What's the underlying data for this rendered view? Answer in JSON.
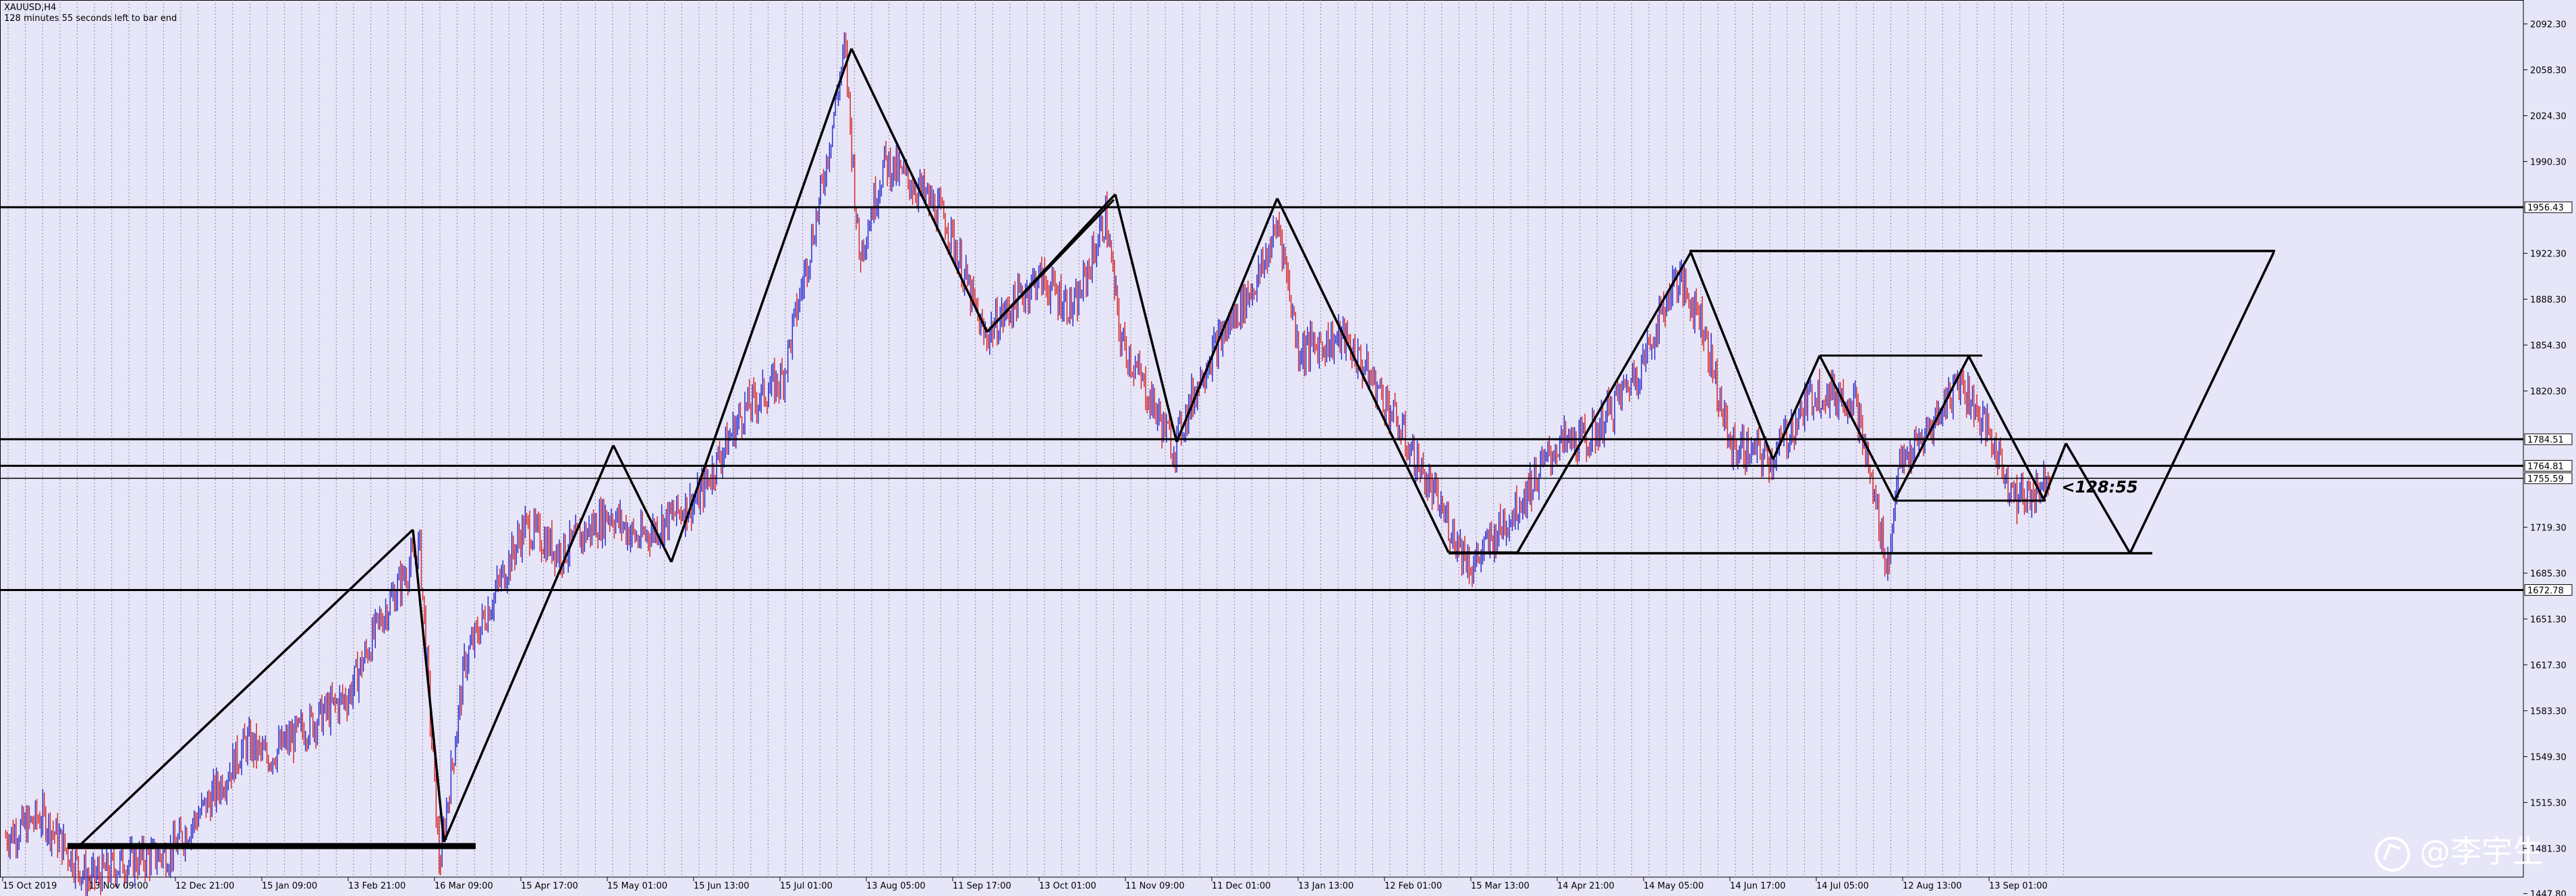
{
  "window": {
    "symbol_title": "XAUUSD,H4",
    "countdown_text": "128 minutes 55 seconds left to bar end",
    "watermark": "@李宇生"
  },
  "colors": {
    "background": "#e6e6f8",
    "grid": "#8a8aa0",
    "bull_candle": "#2020c8",
    "bear_candle": "#d81b1b",
    "drawing": "#000000",
    "price_label_bg": "#ffffff"
  },
  "chart_data": {
    "type": "line",
    "title": "",
    "xlabel": "",
    "ylabel": "",
    "grid": true,
    "price_scale_position": "right",
    "ylim": [
      1460,
      2110
    ],
    "x_tick_labels": [
      "15 Oct 2019",
      "13 Nov 09:00",
      "12 Dec 21:00",
      "15 Jan 09:00",
      "13 Feb 21:00",
      "16 Mar 09:00",
      "15 Apr 17:00",
      "15 May 01:00",
      "15 Jun 13:00",
      "15 Jul 01:00",
      "13 Aug 05:00",
      "11 Sep 17:00",
      "13 Oct 01:00",
      "11 Nov 09:00",
      "11 Dec 01:00",
      "13 Jan 13:00",
      "12 Feb 01:00",
      "15 Mar 13:00",
      "14 Apr 21:00",
      "14 May 05:00",
      "14 Jun 17:00",
      "14 Jul 05:00",
      "12 Aug 13:00",
      "13 Sep 01:00"
    ],
    "y_tick_labels": [
      "2092.30",
      "2058.30",
      "2024.30",
      "1990.30",
      "1922.30",
      "1888.30",
      "1854.30",
      "1820.30",
      "1719.30",
      "1685.30",
      "1651.30",
      "1617.30",
      "1583.30",
      "1549.30",
      "1515.30",
      "1481.30",
      "1447.80"
    ],
    "price_series": {
      "name": "",
      "x": [
        "2019-10-15",
        "2019-10-28",
        "2019-11-13",
        "2019-11-25",
        "2019-12-12",
        "2019-12-27",
        "2020-01-08",
        "2020-01-15",
        "2020-02-01",
        "2020-02-13",
        "2020-02-24",
        "2020-03-09",
        "2020-03-16",
        "2020-03-25",
        "2020-04-15",
        "2020-04-28",
        "2020-05-15",
        "2020-05-25",
        "2020-06-15",
        "2020-07-01",
        "2020-07-15",
        "2020-07-28",
        "2020-08-06",
        "2020-08-11",
        "2020-08-20",
        "2020-09-01",
        "2020-09-11",
        "2020-09-24",
        "2020-10-13",
        "2020-10-26",
        "2020-11-06",
        "2020-11-11",
        "2020-11-30",
        "2020-12-11",
        "2020-12-30",
        "2021-01-06",
        "2021-01-13",
        "2021-01-29",
        "2021-02-12",
        "2021-02-23",
        "2021-03-08",
        "2021-03-15",
        "2021-03-31",
        "2021-04-14",
        "2021-04-26",
        "2021-05-14",
        "2021-05-26",
        "2021-06-04",
        "2021-06-14",
        "2021-06-29",
        "2021-07-14",
        "2021-07-28",
        "2021-08-09",
        "2021-08-12",
        "2021-08-23",
        "2021-09-03",
        "2021-09-13",
        "2021-09-23",
        "2021-09-29",
        "2021-10-05"
      ],
      "values": [
        1490,
        1505,
        1458,
        1470,
        1478,
        1520,
        1560,
        1548,
        1576,
        1595,
        1650,
        1705,
        1468,
        1620,
        1720,
        1700,
        1730,
        1710,
        1740,
        1805,
        1830,
        1960,
        2075,
        1920,
        1990,
        1970,
        1945,
        1860,
        1905,
        1880,
        1950,
        1860,
        1778,
        1840,
        1905,
        1945,
        1850,
        1860,
        1815,
        1770,
        1717,
        1690,
        1735,
        1780,
        1785,
        1840,
        1905,
        1875,
        1780,
        1770,
        1820,
        1815,
        1688,
        1760,
        1790,
        1830,
        1790,
        1740,
        1745,
        1760
      ]
    },
    "horizontal_levels": [
      {
        "value": 1956.43,
        "label": "1956.43"
      },
      {
        "value": 1784.51,
        "label": "1784.51"
      },
      {
        "value": 1764.81,
        "label": "1764.81"
      },
      {
        "value": 1755.59,
        "label": "1755.59"
      },
      {
        "value": 1672.78,
        "label": "1672.78"
      }
    ],
    "annotations": [
      {
        "text": "<128:55",
        "x": "2021-10-09",
        "y": 1749
      }
    ]
  }
}
